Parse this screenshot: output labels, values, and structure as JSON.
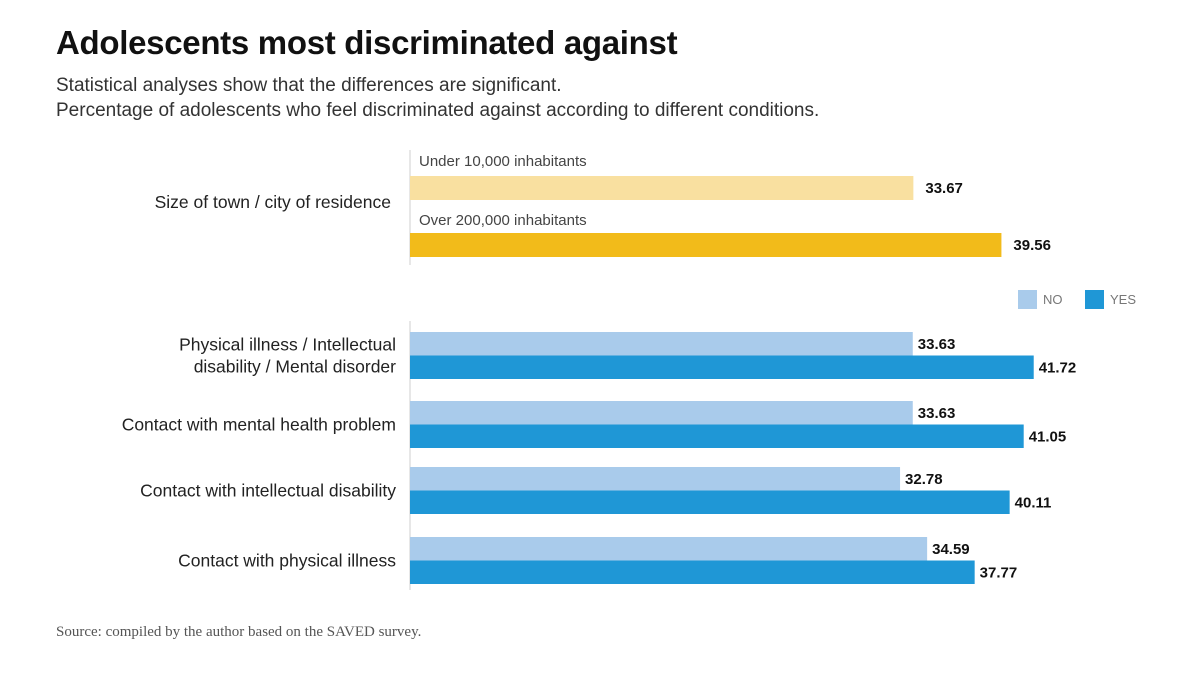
{
  "chart_data": {
    "type": "bar",
    "orientation": "horizontal",
    "title": "Adolescents most discriminated against",
    "subtitle_lines": [
      "Statistical analyses show that the differences are significant.",
      "Percentage of adolescents who feel discriminated against according to different conditions."
    ],
    "source": "Source: compiled by the author based on the SAVED survey.",
    "xlim": [
      0,
      45
    ],
    "groups": [
      {
        "category": "Size of town / city of residence",
        "bars": [
          {
            "label": "Under 10,000 inhabitants",
            "value": 33.67,
            "value_text": "33.67",
            "color": "#f9e0a0"
          },
          {
            "label": "Over 200,000 inhabitants",
            "value": 39.56,
            "value_text": "39.56",
            "color": "#f2bb1a"
          }
        ]
      }
    ],
    "legend": [
      {
        "label": "NO",
        "color": "#a9cbeb"
      },
      {
        "label": "YES",
        "color": "#1f97d6"
      }
    ],
    "categories": [
      [
        "Physical illness / Intellectual",
        "disability / Mental disorder"
      ],
      [
        "Contact with mental health problem"
      ],
      [
        "Contact with intellectual disability"
      ],
      [
        "Contact with physical illness"
      ]
    ],
    "series": [
      {
        "name": "NO",
        "color": "#a9cbeb",
        "values": [
          33.63,
          33.63,
          32.78,
          34.59
        ],
        "value_texts": [
          "33.63",
          "33.63",
          "32.78",
          "34.59"
        ]
      },
      {
        "name": "YES",
        "color": "#1f97d6",
        "values": [
          41.72,
          41.05,
          40.11,
          37.77
        ],
        "value_texts": [
          "41.72",
          "41.05",
          "40.11",
          "37.77"
        ]
      }
    ]
  }
}
